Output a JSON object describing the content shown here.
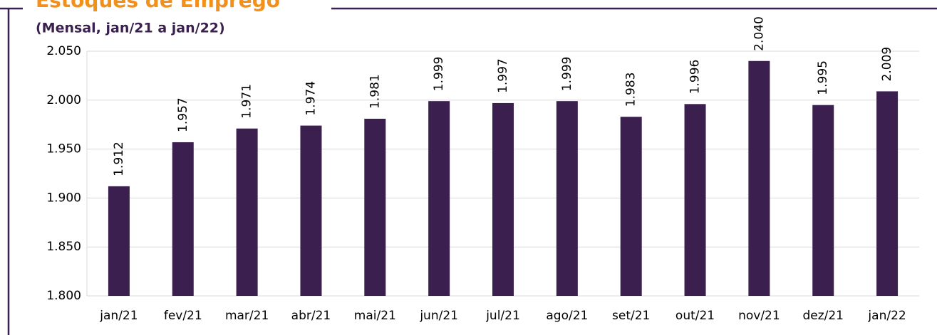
{
  "chart_data": {
    "type": "bar",
    "title": "Estoques de Emprego",
    "subtitle": "(Mensal, jan/21 a jan/22)",
    "categories": [
      "jan/21",
      "fev/21",
      "mar/21",
      "abr/21",
      "mai/21",
      "jun/21",
      "jul/21",
      "ago/21",
      "set/21",
      "out/21",
      "nov/21",
      "dez/21",
      "jan/22"
    ],
    "values": [
      1912,
      1957,
      1971,
      1974,
      1981,
      1999,
      1997,
      1999,
      1983,
      1996,
      2040,
      1995,
      2009
    ],
    "value_labels": [
      "1.912",
      "1.957",
      "1.971",
      "1.974",
      "1.981",
      "1.999",
      "1.997",
      "1.999",
      "1.983",
      "1.996",
      "2.040",
      "1.995",
      "2.009"
    ],
    "color": "#3b1f4f",
    "ylim": [
      1800,
      2050
    ],
    "yticks": [
      {
        "value": 1800,
        "label": "1.800"
      },
      {
        "value": 1850,
        "label": "1.850"
      },
      {
        "value": 1900,
        "label": "1.900"
      },
      {
        "value": 1950,
        "label": "1.950"
      },
      {
        "value": 2000,
        "label": "2.000"
      },
      {
        "value": 2050,
        "label": "2.050"
      }
    ],
    "grid": true
  }
}
